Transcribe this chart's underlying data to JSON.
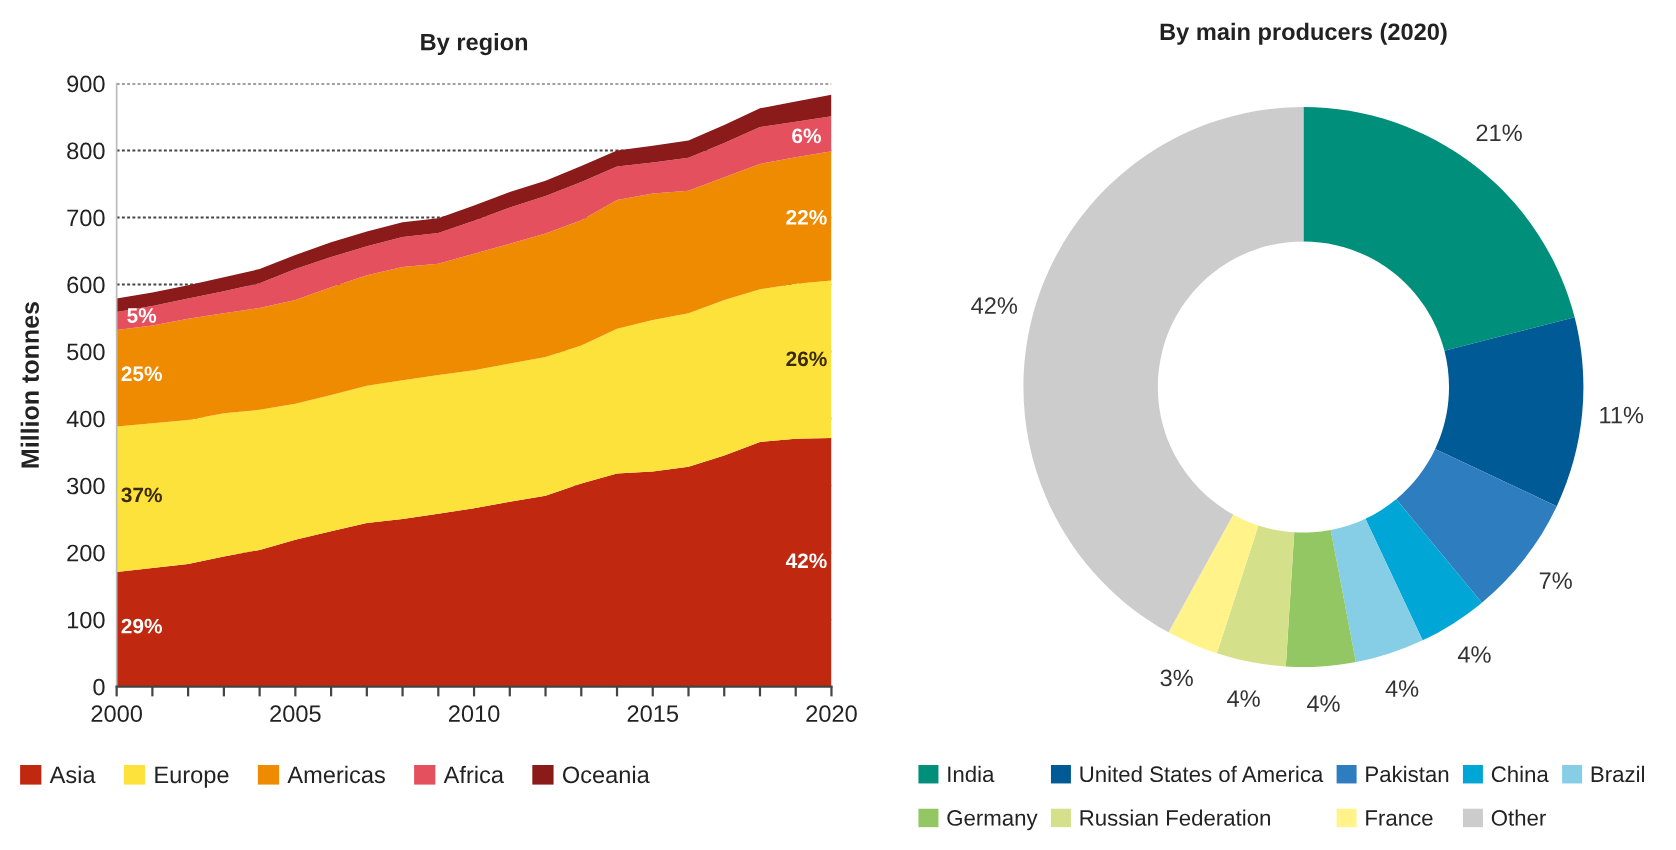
{
  "chart_data": [
    {
      "type": "area",
      "title": "By region",
      "ylabel": "Million tonnes",
      "stacked": true,
      "grid": "y",
      "legend": "bottom",
      "x": [
        2000,
        2001,
        2002,
        2003,
        2004,
        2005,
        2006,
        2007,
        2008,
        2009,
        2010,
        2011,
        2012,
        2013,
        2014,
        2015,
        2016,
        2017,
        2018,
        2019,
        2020
      ],
      "xlim": [
        2000,
        2020
      ],
      "xticks": [
        2000,
        {
          "value": 2001,
          "label": null
        },
        {
          "value": 2002,
          "label": null
        },
        {
          "value": 2003,
          "label": null
        },
        {
          "value": 2004,
          "label": null
        },
        2005,
        {
          "value": 2006,
          "label": null
        },
        {
          "value": 2007,
          "label": null
        },
        {
          "value": 2008,
          "label": null
        },
        {
          "value": 2009,
          "label": null
        },
        2010,
        {
          "value": 2011,
          "label": null
        },
        {
          "value": 2012,
          "label": null
        },
        {
          "value": 2013,
          "label": null
        },
        {
          "value": 2014,
          "label": null
        },
        2015,
        {
          "value": 2016,
          "label": null
        },
        {
          "value": 2017,
          "label": null
        },
        {
          "value": 2018,
          "label": null
        },
        {
          "value": 2019,
          "label": null
        },
        2020
      ],
      "ylim": [
        0,
        900
      ],
      "yticks": [
        0,
        100,
        200,
        300,
        400,
        500,
        600,
        700,
        800,
        900
      ],
      "series": [
        {
          "name": "Asia",
          "color": "#c0290f",
          "values": [
            171,
            177,
            183,
            194,
            204,
            219,
            232,
            244,
            250,
            258,
            266,
            276,
            285,
            303,
            318,
            321,
            328,
            345,
            365,
            370,
            371
          ]
        },
        {
          "name": "Europe",
          "color": "#fde23c",
          "values": [
            217,
            216,
            215,
            214,
            209,
            203,
            203,
            205,
            207,
            207,
            206,
            206,
            207,
            206,
            216,
            226,
            229,
            232,
            228,
            231,
            235
          ]
        },
        {
          "name": "Americas",
          "color": "#ef8b00",
          "values": [
            144,
            146,
            151,
            149,
            152,
            155,
            161,
            165,
            169,
            166,
            174,
            179,
            184,
            187,
            192,
            189,
            183,
            183,
            187,
            189,
            193
          ]
        },
        {
          "name": "Africa",
          "color": "#e5505f",
          "values": [
            27,
            29,
            30,
            33,
            37,
            46,
            45,
            43,
            45,
            46,
            49,
            54,
            56,
            57,
            50,
            46,
            49,
            51,
            55,
            53,
            52
          ]
        },
        {
          "name": "Oceania",
          "color": "#8b1a1a",
          "values": [
            20,
            20,
            20,
            21,
            21,
            21,
            22,
            22,
            22,
            22,
            23,
            23,
            23,
            24,
            24,
            25,
            26,
            27,
            28,
            30,
            32
          ]
        }
      ],
      "annotations": [
        "29%",
        "37%",
        "25%",
        "5%",
        "42%",
        "26%",
        "22%",
        "6%"
      ]
    },
    {
      "type": "donut",
      "title": "By main producers (2020)",
      "legend": "bottom",
      "categories": [
        "India",
        "United States of America",
        "Pakistan",
        "China",
        "Brazil",
        "Germany",
        "Russian Federation",
        "France",
        "Other"
      ],
      "values": [
        21,
        11,
        7,
        4,
        4,
        4,
        4,
        3,
        42
      ],
      "colors": [
        "#008f7a",
        "#005a96",
        "#2e7ebf",
        "#00a6d6",
        "#86cde6",
        "#93c763",
        "#d5e08a",
        "#fff38a",
        "#cccccc"
      ],
      "value_labels": [
        "21%",
        "11%",
        "7%",
        "4%",
        "4%",
        "4%",
        "4%",
        "3%",
        "42%"
      ]
    }
  ]
}
